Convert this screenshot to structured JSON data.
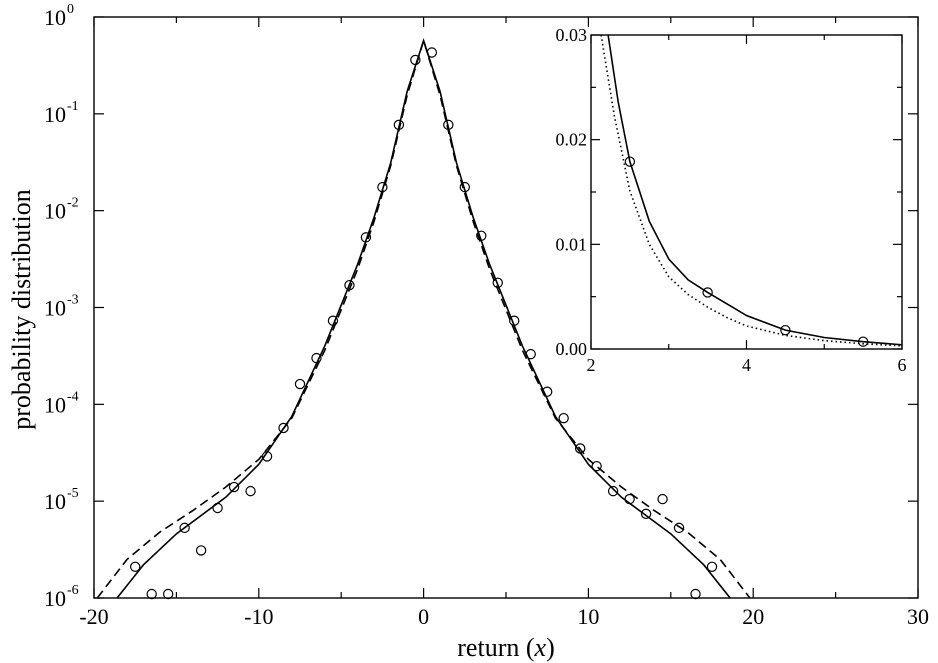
{
  "chart_data": [
    {
      "type": "scatter",
      "title": "",
      "xlabel": "return (",
      "xlabel_var": "x",
      "xlabel_close": ")",
      "ylabel": "probability distribution",
      "xlim": [
        -20,
        30
      ],
      "ylim": [
        1e-06,
        1
      ],
      "yscale": "log",
      "grid": false,
      "legend": "none",
      "x_ticks": [
        {
          "v": -20,
          "label": "-20"
        },
        {
          "v": -10,
          "label": "-10"
        },
        {
          "v": 0,
          "label": "0"
        },
        {
          "v": 10,
          "label": "10"
        },
        {
          "v": 20,
          "label": "20"
        },
        {
          "v": 30,
          "label": "30"
        }
      ],
      "y_ticks": [
        {
          "v": 1,
          "base": "10",
          "exp": "0"
        },
        {
          "v": 0.1,
          "base": "10",
          "exp": "-1"
        },
        {
          "v": 0.01,
          "base": "10",
          "exp": "-2"
        },
        {
          "v": 0.001,
          "base": "10",
          "exp": "-3"
        },
        {
          "v": 0.0001,
          "base": "10",
          "exp": "-4"
        },
        {
          "v": 1e-05,
          "base": "10",
          "exp": "-5"
        },
        {
          "v": 1e-06,
          "base": "10",
          "exp": "-6"
        }
      ],
      "series": [
        {
          "style": "markers",
          "marker": "open-circle",
          "points": [
            {
              "x": -17.5,
              "y": 2.1e-06
            },
            {
              "x": -16.5,
              "y": 1.1e-06
            },
            {
              "x": -15.5,
              "y": 1.1e-06
            },
            {
              "x": -14.5,
              "y": 5.3e-06
            },
            {
              "x": -13.5,
              "y": 3.1e-06
            },
            {
              "x": -12.5,
              "y": 8.5e-06
            },
            {
              "x": -11.5,
              "y": 1.4e-05
            },
            {
              "x": -10.5,
              "y": 1.27e-05
            },
            {
              "x": -9.5,
              "y": 2.9e-05
            },
            {
              "x": -8.5,
              "y": 5.7e-05
            },
            {
              "x": -7.5,
              "y": 0.000162
            },
            {
              "x": -6.5,
              "y": 0.0003
            },
            {
              "x": -5.5,
              "y": 0.00073
            },
            {
              "x": -4.5,
              "y": 0.0017
            },
            {
              "x": -3.5,
              "y": 0.0053
            },
            {
              "x": -2.5,
              "y": 0.0175
            },
            {
              "x": -1.5,
              "y": 0.077
            },
            {
              "x": -0.5,
              "y": 0.36
            },
            {
              "x": 0.5,
              "y": 0.43
            },
            {
              "x": 1.5,
              "y": 0.077
            },
            {
              "x": 2.5,
              "y": 0.0175
            },
            {
              "x": 3.5,
              "y": 0.0055
            },
            {
              "x": 4.5,
              "y": 0.0018
            },
            {
              "x": 5.5,
              "y": 0.00073
            },
            {
              "x": 6.5,
              "y": 0.00033
            },
            {
              "x": 7.5,
              "y": 0.000135
            },
            {
              "x": 8.5,
              "y": 7.2e-05
            },
            {
              "x": 9.5,
              "y": 3.5e-05
            },
            {
              "x": 10.5,
              "y": 2.3e-05
            },
            {
              "x": 11.5,
              "y": 1.27e-05
            },
            {
              "x": 12.5,
              "y": 1.05e-05
            },
            {
              "x": 13.5,
              "y": 7.4e-06
            },
            {
              "x": 14.5,
              "y": 1.05e-05
            },
            {
              "x": 15.5,
              "y": 5.3e-06
            },
            {
              "x": 16.5,
              "y": 1.1e-06
            },
            {
              "x": 17.5,
              "y": 2.1e-06
            }
          ]
        },
        {
          "style": "solid-line",
          "points": [
            {
              "x": -18.6,
              "y": 1e-06
            },
            {
              "x": -17,
              "y": 2.2e-06
            },
            {
              "x": -15,
              "y": 4.6e-06
            },
            {
              "x": -12,
              "y": 1.1e-05
            },
            {
              "x": -10,
              "y": 2.4e-05
            },
            {
              "x": -8,
              "y": 7.5e-05
            },
            {
              "x": -6,
              "y": 0.0004
            },
            {
              "x": -4,
              "y": 0.0028
            },
            {
              "x": -3,
              "y": 0.0086
            },
            {
              "x": -2,
              "y": 0.031
            },
            {
              "x": -1,
              "y": 0.17
            },
            {
              "x": 0,
              "y": 0.57
            },
            {
              "x": 1,
              "y": 0.17
            },
            {
              "x": 2,
              "y": 0.031
            },
            {
              "x": 3,
              "y": 0.0086
            },
            {
              "x": 4,
              "y": 0.0028
            },
            {
              "x": 6,
              "y": 0.0004
            },
            {
              "x": 8,
              "y": 7.5e-05
            },
            {
              "x": 10,
              "y": 2.4e-05
            },
            {
              "x": 12,
              "y": 1.1e-05
            },
            {
              "x": 15,
              "y": 4.6e-06
            },
            {
              "x": 17,
              "y": 2.2e-06
            },
            {
              "x": 18.6,
              "y": 1e-06
            }
          ]
        },
        {
          "style": "dashed-line",
          "points": [
            {
              "x": -19.8,
              "y": 1e-06
            },
            {
              "x": -18,
              "y": 2.5e-06
            },
            {
              "x": -16,
              "y": 4.8e-06
            },
            {
              "x": -14,
              "y": 8e-06
            },
            {
              "x": -12,
              "y": 1.4e-05
            },
            {
              "x": -10,
              "y": 2.7e-05
            },
            {
              "x": -8,
              "y": 7.2e-05
            },
            {
              "x": -6,
              "y": 0.00036
            },
            {
              "x": -4,
              "y": 0.0025
            },
            {
              "x": -3,
              "y": 0.0078
            },
            {
              "x": -2,
              "y": 0.029
            },
            {
              "x": -1,
              "y": 0.155
            },
            {
              "x": 0,
              "y": 0.57
            },
            {
              "x": 1,
              "y": 0.155
            },
            {
              "x": 2,
              "y": 0.029
            },
            {
              "x": 3,
              "y": 0.0078
            },
            {
              "x": 4,
              "y": 0.0025
            },
            {
              "x": 6,
              "y": 0.00036
            },
            {
              "x": 8,
              "y": 7.2e-05
            },
            {
              "x": 10,
              "y": 2.7e-05
            },
            {
              "x": 12,
              "y": 1.4e-05
            },
            {
              "x": 14,
              "y": 8e-06
            },
            {
              "x": 16,
              "y": 4.8e-06
            },
            {
              "x": 18,
              "y": 2.5e-06
            },
            {
              "x": 19.8,
              "y": 1e-06
            }
          ]
        }
      ]
    },
    {
      "type": "line",
      "title": "",
      "xlim": [
        2,
        6
      ],
      "ylim": [
        0,
        0.03
      ],
      "grid": false,
      "legend": "none",
      "x_ticks": [
        {
          "v": 2,
          "label": "2"
        },
        {
          "v": 4,
          "label": "4"
        },
        {
          "v": 6,
          "label": "6"
        }
      ],
      "y_ticks": [
        {
          "v": 0,
          "label": "0.00"
        },
        {
          "v": 0.01,
          "label": "0.01"
        },
        {
          "v": 0.02,
          "label": "0.02"
        },
        {
          "v": 0.03,
          "label": "0.03"
        }
      ],
      "series": [
        {
          "style": "markers",
          "marker": "open-circle",
          "points": [
            {
              "x": 2.5,
              "y": 0.0179
            },
            {
              "x": 3.5,
              "y": 0.0054
            },
            {
              "x": 4.5,
              "y": 0.0018
            },
            {
              "x": 5.5,
              "y": 0.0007
            }
          ]
        },
        {
          "style": "solid-line",
          "points": [
            {
              "x": 2.22,
              "y": 0.03
            },
            {
              "x": 2.35,
              "y": 0.0236
            },
            {
              "x": 2.5,
              "y": 0.0179
            },
            {
              "x": 2.75,
              "y": 0.0122
            },
            {
              "x": 3.0,
              "y": 0.0086
            },
            {
              "x": 3.25,
              "y": 0.0066
            },
            {
              "x": 3.5,
              "y": 0.0054
            },
            {
              "x": 3.75,
              "y": 0.0043
            },
            {
              "x": 4.0,
              "y": 0.0032
            },
            {
              "x": 4.5,
              "y": 0.0018
            },
            {
              "x": 5.0,
              "y": 0.0011
            },
            {
              "x": 5.5,
              "y": 0.0007
            },
            {
              "x": 6.0,
              "y": 0.0004
            }
          ]
        },
        {
          "style": "dotted-line",
          "points": [
            {
              "x": 2.13,
              "y": 0.03
            },
            {
              "x": 2.3,
              "y": 0.0223
            },
            {
              "x": 2.5,
              "y": 0.0151
            },
            {
              "x": 2.75,
              "y": 0.01
            },
            {
              "x": 3.0,
              "y": 0.0069
            },
            {
              "x": 3.25,
              "y": 0.0052
            },
            {
              "x": 3.5,
              "y": 0.004
            },
            {
              "x": 3.75,
              "y": 0.003
            },
            {
              "x": 4.0,
              "y": 0.0022
            },
            {
              "x": 4.5,
              "y": 0.0013
            },
            {
              "x": 5.0,
              "y": 0.0008
            },
            {
              "x": 5.5,
              "y": 0.0005
            },
            {
              "x": 6.0,
              "y": 0.0003
            }
          ]
        }
      ]
    }
  ]
}
